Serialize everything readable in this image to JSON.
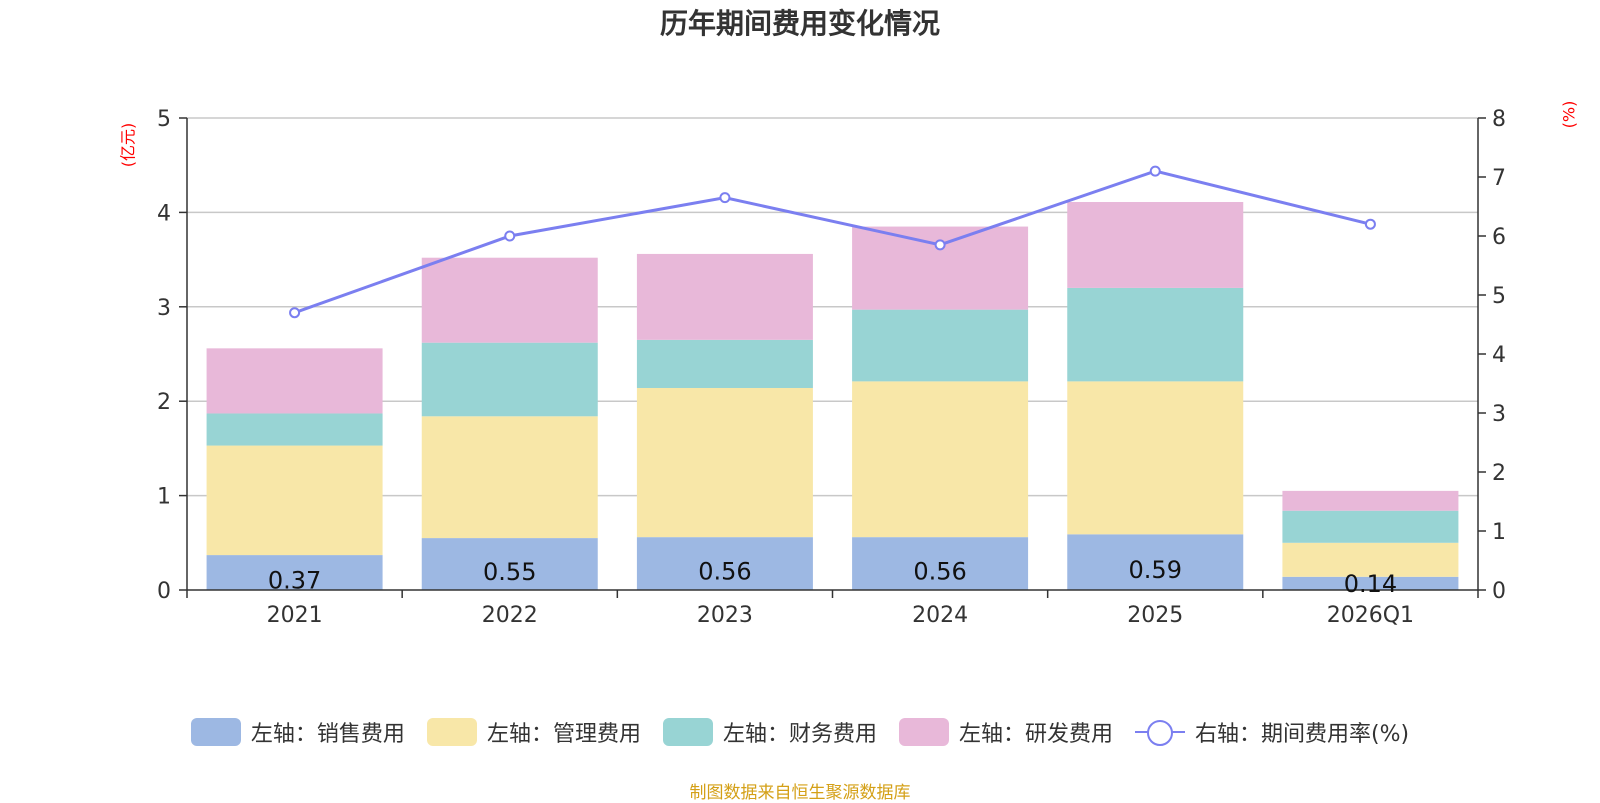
{
  "chart_data": {
    "type": "bar",
    "title": "历年期间费用变化情况",
    "categories": [
      "2021",
      "2022",
      "2023",
      "2024",
      "2025",
      "2026Q1"
    ],
    "left_axis": {
      "unit": "(亿元)",
      "ylim": [
        0,
        5
      ],
      "ticks": [
        0,
        1,
        2,
        3,
        4,
        5
      ]
    },
    "right_axis": {
      "unit": "(%)",
      "ylim": [
        0,
        8
      ],
      "ticks": [
        0,
        1,
        2,
        3,
        4,
        5,
        6,
        7,
        8
      ]
    },
    "grid": true,
    "legend_position": "bottom",
    "series": [
      {
        "name": "左轴：销售费用",
        "axis": "left",
        "type": "bar",
        "stack": "cost",
        "color": "#9db8e3",
        "values": [
          0.37,
          0.55,
          0.56,
          0.56,
          0.59,
          0.14
        ],
        "labels": [
          "0.37",
          "0.55",
          "0.56",
          "0.56",
          "0.59",
          "0.14"
        ]
      },
      {
        "name": "左轴：管理费用",
        "axis": "left",
        "type": "bar",
        "stack": "cost",
        "color": "#f8e7a8",
        "values": [
          1.16,
          1.29,
          1.58,
          1.65,
          1.62,
          0.36
        ]
      },
      {
        "name": "左轴：财务费用",
        "axis": "left",
        "type": "bar",
        "stack": "cost",
        "color": "#98d4d4",
        "values": [
          0.34,
          0.78,
          0.51,
          0.76,
          0.99,
          0.34
        ]
      },
      {
        "name": "左轴：研发费用",
        "axis": "left",
        "type": "bar",
        "stack": "cost",
        "color": "#e8b8d9",
        "values": [
          0.69,
          0.9,
          0.91,
          0.88,
          0.91,
          0.21
        ]
      },
      {
        "name": "右轴：期间费用率(%)",
        "axis": "right",
        "type": "line",
        "color": "#7b7ff0",
        "values": [
          4.7,
          6.0,
          6.65,
          5.85,
          7.1,
          6.2
        ]
      }
    ]
  },
  "footer": "制图数据来自恒生聚源数据库"
}
